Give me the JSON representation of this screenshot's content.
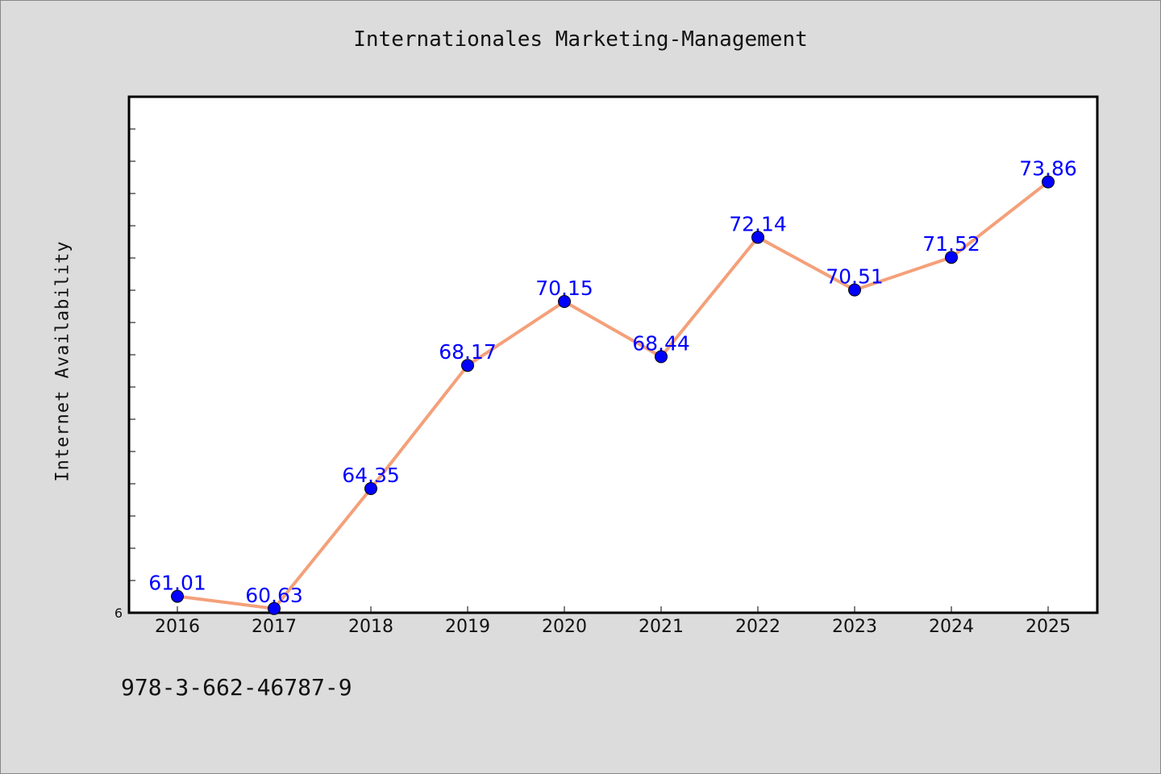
{
  "chart_data": {
    "type": "line",
    "title": "Internationales Marketing-Management",
    "xlabel": "",
    "ylabel": "Internet Availability",
    "categories": [
      "2016",
      "2017",
      "2018",
      "2019",
      "2020",
      "2021",
      "2022",
      "2023",
      "2024",
      "2025"
    ],
    "values": [
      61.01,
      60.63,
      64.35,
      68.17,
      70.15,
      68.44,
      72.14,
      70.51,
      71.52,
      73.86
    ],
    "data_labels": [
      "61.01",
      "60.63",
      "64.35",
      "68.17",
      "70.15",
      "68.44",
      "72.14",
      "70.51",
      "71.52",
      "73.86"
    ],
    "ylim": [
      60.5,
      76.5
    ],
    "y_tick_labels": [
      "6"
    ],
    "grid": false,
    "line_color": "#f4a07a",
    "marker_color": "#0000ff",
    "label_color": "#0000ff"
  },
  "footer_text": "978-3-662-46787-9",
  "colors": {
    "background": "#dcdcdc",
    "plot_background": "#ffffff"
  }
}
